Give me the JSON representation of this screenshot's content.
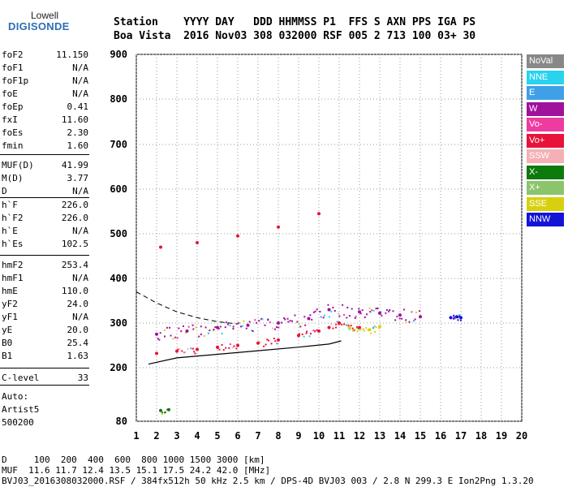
{
  "logo": {
    "top": "Lowell",
    "main": "DIGISONDE"
  },
  "header": {
    "line1": "Station    YYYY DAY   DDD HHMMSS P1  FFS S AXN PPS IGA PS",
    "line2": "Boa Vista  2016 Nov03 308 032000 RSF 005 2 713 100 03+ 30"
  },
  "params": [
    {
      "name": "foF2",
      "value": "11.150"
    },
    {
      "name": "foF1",
      "value": "N/A"
    },
    {
      "name": "foF1p",
      "value": "N/A"
    },
    {
      "name": "foE",
      "value": "N/A"
    },
    {
      "name": "foEp",
      "value": "0.41"
    },
    {
      "name": "fxI",
      "value": "11.60"
    },
    {
      "name": "foEs",
      "value": "2.30"
    },
    {
      "name": "fmin",
      "value": "1.60"
    },
    {
      "name": "MUF(D)",
      "value": "41.99"
    },
    {
      "name": "M(D)",
      "value": "3.77"
    },
    {
      "name": "D",
      "value": "N/A"
    },
    {
      "name": "h`F",
      "value": "226.0"
    },
    {
      "name": "h`F2",
      "value": "226.0"
    },
    {
      "name": "h`E",
      "value": "N/A"
    },
    {
      "name": "h`Es",
      "value": "102.5"
    },
    {
      "name": "hmF2",
      "value": "253.4"
    },
    {
      "name": "hmF1",
      "value": "N/A"
    },
    {
      "name": "hmE",
      "value": "110.0"
    },
    {
      "name": "yF2",
      "value": "24.0"
    },
    {
      "name": "yF1",
      "value": "N/A"
    },
    {
      "name": "yE",
      "value": "20.0"
    },
    {
      "name": "B0",
      "value": "25.4"
    },
    {
      "name": "B1",
      "value": "1.63"
    },
    {
      "name": "C-level",
      "value": "33"
    }
  ],
  "auto": [
    "Auto:",
    "Artist5",
    "500200"
  ],
  "legend": [
    {
      "label": "NoVal",
      "color": "#888888"
    },
    {
      "label": "NNE",
      "color": "#29d3ee"
    },
    {
      "label": "E",
      "color": "#3fa0e8"
    },
    {
      "label": "W",
      "color": "#a0119c"
    },
    {
      "label": "Vo-",
      "color": "#ef3aa0"
    },
    {
      "label": "Vo+",
      "color": "#e8123a"
    },
    {
      "label": "SSW",
      "color": "#f4b0b4"
    },
    {
      "label": "X-",
      "color": "#0d7a0d"
    },
    {
      "label": "X+",
      "color": "#8bc46a"
    },
    {
      "label": "SSE",
      "color": "#d8d00e"
    },
    {
      "label": "NNW",
      "color": "#1414d6"
    }
  ],
  "footer": {
    "line1": "D     100  200  400  600  800 1000 1500 3000 [km]",
    "line2": "MUF  11.6 11.7 12.4 13.5 15.1 17.5 24.2 42.0 [MHz]",
    "line3": "BVJ03_2016308032000.RSF / 384fx512h 50 kHz 2.5 km / DPS-4D BVJ03 003 / 2.8 N 299.3 E Ion2Png 1.3.20"
  },
  "chart_data": {
    "type": "scatter",
    "xlabel": "",
    "ylabel": "",
    "xlim": [
      1,
      20
    ],
    "ylim": [
      80,
      900
    ],
    "xticks": [
      1,
      2,
      3,
      4,
      5,
      6,
      7,
      8,
      9,
      10,
      11,
      12,
      13,
      14,
      15,
      16,
      17,
      18,
      19,
      20
    ],
    "yticks": [
      80,
      200,
      300,
      400,
      500,
      600,
      700,
      800,
      900
    ],
    "grid": "dotted",
    "legend_position": "right",
    "series": [
      {
        "name": "Vo+",
        "values": [
          [
            2.0,
            232
          ],
          [
            3.0,
            237
          ],
          [
            4.0,
            241
          ],
          [
            5.0,
            246
          ],
          [
            6.0,
            250
          ],
          [
            7.0,
            255
          ],
          [
            8.0,
            262
          ],
          [
            9.0,
            272
          ],
          [
            10.0,
            282
          ],
          [
            10.5,
            290
          ],
          [
            11.0,
            300
          ],
          [
            12.0,
            290
          ],
          [
            2.2,
            470
          ],
          [
            4.0,
            480
          ],
          [
            6.0,
            495
          ],
          [
            8.0,
            515
          ],
          [
            10.0,
            545
          ]
        ]
      },
      {
        "name": "W",
        "values": [
          [
            2.0,
            275
          ],
          [
            3.5,
            282
          ],
          [
            5.0,
            290
          ],
          [
            6.5,
            295
          ],
          [
            8.0,
            300
          ],
          [
            9.5,
            310
          ],
          [
            10.5,
            330
          ],
          [
            12.0,
            325
          ],
          [
            13.0,
            322
          ],
          [
            14.0,
            318
          ],
          [
            15.0,
            314
          ]
        ]
      },
      {
        "name": "NNW",
        "values": [
          [
            16.5,
            312
          ],
          [
            16.8,
            314
          ],
          [
            17.0,
            312
          ]
        ]
      },
      {
        "name": "X-",
        "values": [
          [
            2.2,
            104
          ],
          [
            2.6,
            106
          ]
        ]
      },
      {
        "name": "SSE",
        "values": [
          [
            11.5,
            290
          ],
          [
            12.5,
            285
          ],
          [
            13.0,
            292
          ]
        ]
      }
    ],
    "profile_line": [
      [
        1.6,
        208
      ],
      [
        3,
        222
      ],
      [
        5,
        230
      ],
      [
        7,
        238
      ],
      [
        9,
        246
      ],
      [
        10.5,
        253
      ],
      [
        11.1,
        260
      ]
    ],
    "dashed_profile": [
      [
        1.0,
        370
      ],
      [
        2.0,
        345
      ],
      [
        3.0,
        325
      ],
      [
        4.0,
        312
      ],
      [
        5.0,
        303
      ],
      [
        6.0,
        298
      ]
    ]
  }
}
